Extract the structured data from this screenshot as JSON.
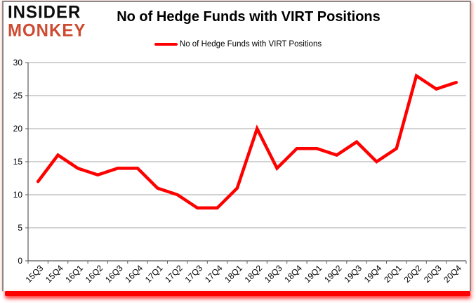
{
  "brand": {
    "line1": "INSIDER",
    "line2": "MONKEY",
    "accent_color": "#cf4a32"
  },
  "header": {
    "title": "No of Hedge Funds with VIRT Positions"
  },
  "legend": {
    "label": "No of Hedge Funds with VIRT Positions",
    "line_color": "#ff0000"
  },
  "colors": {
    "series_red": "#ff0000",
    "gridline_gray": "#a6a6a6",
    "axis_gray": "#595959",
    "card_border_gray": "#898989",
    "bottom_bar_red": "#ff0000"
  },
  "chart_data": {
    "type": "line",
    "title": "No of Hedge Funds with VIRT Positions",
    "xlabel": "",
    "ylabel": "",
    "categories": [
      "15Q3",
      "15Q4",
      "16Q1",
      "16Q2",
      "16Q3",
      "16Q4",
      "17Q1",
      "17Q2",
      "17Q3",
      "17Q4",
      "18Q1",
      "18Q2",
      "18Q3",
      "18Q4",
      "19Q1",
      "19Q2",
      "19Q3",
      "19Q4",
      "20Q1",
      "20Q2",
      "20Q3",
      "20Q4"
    ],
    "series": [
      {
        "name": "No of Hedge Funds with VIRT Positions",
        "color": "#ff0000",
        "values": [
          12,
          16,
          14,
          13,
          14,
          14,
          11,
          10,
          8,
          8,
          11,
          20,
          14,
          17,
          17,
          16,
          18,
          15,
          17,
          28,
          26,
          27
        ]
      }
    ],
    "ylim": [
      0,
      30
    ],
    "yticks": [
      0,
      5,
      10,
      15,
      20,
      25,
      30
    ],
    "grid": true,
    "legend_position": "top",
    "x_tick_rotation_deg": 45
  }
}
